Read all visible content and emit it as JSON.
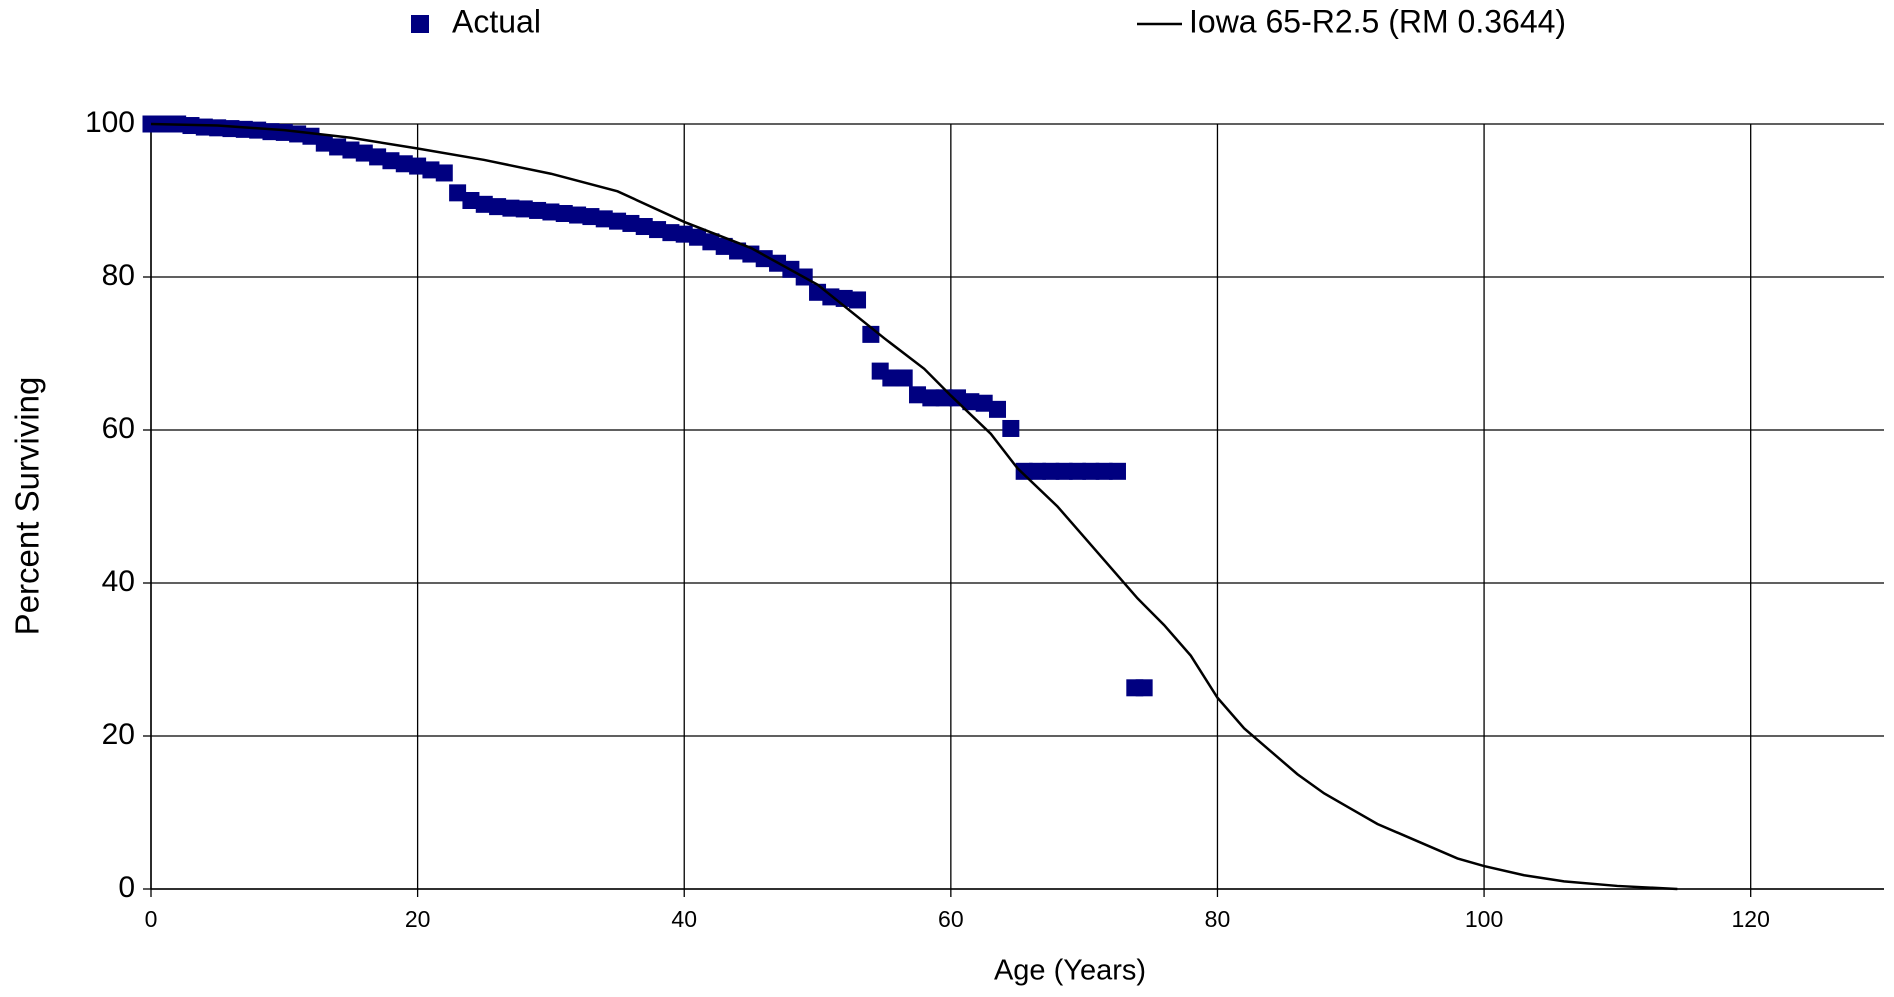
{
  "chart_data": {
    "type": "scatter",
    "x_label": "Age (Years)",
    "y_label": "Percent Surviving",
    "xlim": [
      0,
      130
    ],
    "xticks": [
      0,
      20,
      40,
      60,
      80,
      100,
      120
    ],
    "ylim": [
      0,
      100
    ],
    "yticks": [
      0,
      20,
      40,
      60,
      80,
      100
    ],
    "grid": true,
    "legend": "top",
    "series": [
      {
        "name": "Actual",
        "type": "scatter",
        "color": "#000080",
        "x": [
          0,
          1,
          2,
          3,
          4,
          5,
          6,
          7,
          8,
          9,
          10,
          11,
          12,
          13,
          14,
          15,
          16,
          17,
          18,
          19,
          20,
          21,
          22,
          23,
          24,
          25,
          26,
          27,
          28,
          29,
          30,
          31,
          32,
          33,
          34,
          35,
          36,
          37,
          38,
          39,
          40,
          41,
          42,
          43,
          44,
          45,
          46,
          47,
          48,
          49,
          50,
          51,
          52,
          53,
          54,
          54.7,
          55.5,
          56.5,
          57.5,
          58.5,
          59.5,
          60.5,
          61.5,
          62.5,
          63.5,
          64.5,
          65.5,
          66.5,
          67.5,
          68.5,
          69.5,
          70.5,
          71.5,
          72.5,
          73.8,
          74.5
        ],
        "values": [
          100,
          100,
          100,
          99.8,
          99.6,
          99.5,
          99.4,
          99.3,
          99.2,
          99,
          98.9,
          98.7,
          98.4,
          97.5,
          97,
          96.6,
          96.2,
          95.7,
          95.2,
          94.8,
          94.5,
          94,
          93.6,
          91,
          90,
          89.5,
          89.2,
          89,
          88.9,
          88.7,
          88.5,
          88.3,
          88.1,
          87.9,
          87.6,
          87.3,
          87,
          86.6,
          86.2,
          85.8,
          85.6,
          85.2,
          84.6,
          84,
          83.4,
          83,
          82.4,
          81.8,
          81,
          80,
          78,
          77.4,
          77.2,
          77,
          72.5,
          67.7,
          66.8,
          66.8,
          64.6,
          64.2,
          64.2,
          64.2,
          63.7,
          63.5,
          62.7,
          60.2,
          54.6,
          54.6,
          54.6,
          54.6,
          54.6,
          54.6,
          54.6,
          54.6,
          26.3,
          26.3
        ]
      },
      {
        "name": "Iowa 65-R2.5 (RM 0.3644)",
        "type": "line",
        "color": "#000000",
        "x": [
          0,
          5,
          10,
          15,
          20,
          25,
          30,
          35,
          40,
          45,
          50,
          55,
          58,
          60,
          63,
          65,
          68,
          70,
          72,
          74,
          76,
          78,
          80,
          82,
          84,
          86,
          88,
          90,
          92,
          94,
          96,
          98,
          100,
          103,
          106,
          110,
          114.5
        ],
        "values": [
          100,
          99.8,
          99.2,
          98.2,
          96.8,
          95.3,
          93.5,
          91.2,
          87.2,
          83.8,
          79,
          72,
          68,
          64.5,
          59.5,
          55,
          50,
          46,
          42,
          38,
          34.5,
          30.5,
          25,
          21,
          18,
          15,
          12.5,
          10.5,
          8.5,
          7,
          5.5,
          4,
          3,
          1.8,
          1,
          0.4,
          0
        ]
      }
    ]
  }
}
